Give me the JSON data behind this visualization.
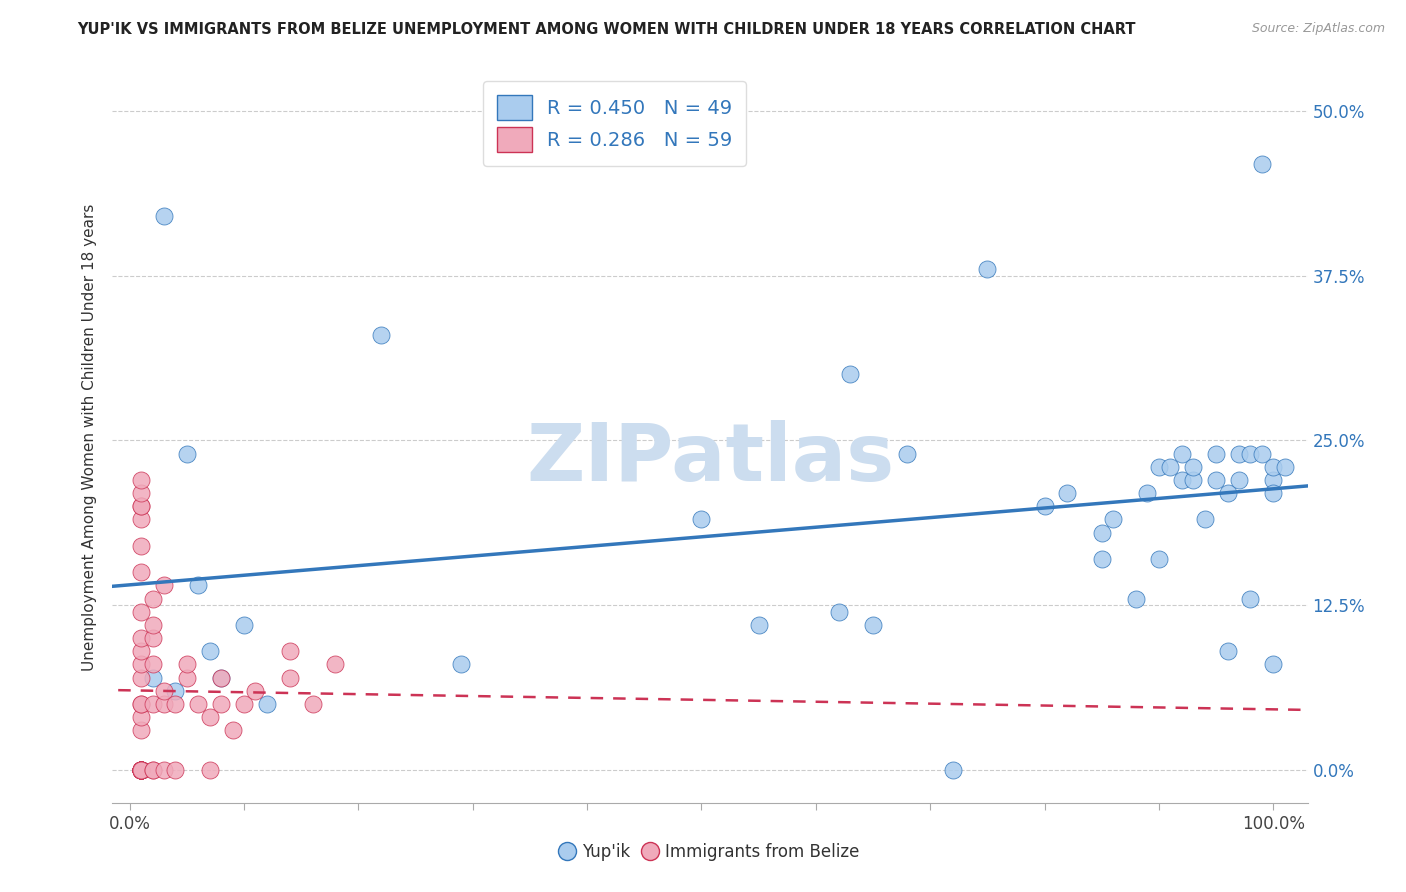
{
  "title": "YUP'IK VS IMMIGRANTS FROM BELIZE UNEMPLOYMENT AMONG WOMEN WITH CHILDREN UNDER 18 YEARS CORRELATION CHART",
  "source": "Source: ZipAtlas.com",
  "ylabel": "Unemployment Among Women with Children Under 18 years",
  "ytick_labels": [
    "0.0%",
    "12.5%",
    "25.0%",
    "37.5%",
    "50.0%"
  ],
  "ytick_values": [
    0.0,
    12.5,
    25.0,
    37.5,
    50.0
  ],
  "xtick_values": [
    0.0,
    10.0,
    20.0,
    30.0,
    40.0,
    50.0,
    60.0,
    70.0,
    80.0,
    90.0,
    100.0
  ],
  "xlim": [
    -1.5,
    103
  ],
  "ylim": [
    -2.5,
    53
  ],
  "legend_blue_R": "0.450",
  "legend_blue_N": "49",
  "legend_pink_R": "0.286",
  "legend_pink_N": "59",
  "legend_label_blue": "Yup'ik",
  "legend_label_pink": "Immigrants from Belize",
  "color_blue": "#aaccee",
  "color_pink": "#f0aabb",
  "trendline_blue": "#3377bb",
  "trendline_pink": "#cc3355",
  "watermark_color": "#ccddef",
  "watermark": "ZIPatlas",
  "blue_x": [
    3,
    5,
    22,
    29,
    50,
    55,
    62,
    63,
    65,
    68,
    72,
    75,
    80,
    82,
    85,
    85,
    86,
    88,
    89,
    90,
    90,
    91,
    92,
    92,
    93,
    93,
    94,
    95,
    95,
    96,
    96,
    97,
    97,
    98,
    98,
    99,
    99,
    100,
    100,
    100,
    100,
    101,
    2,
    4,
    6,
    7,
    8,
    10,
    12
  ],
  "blue_y": [
    42,
    24,
    33,
    8,
    19,
    11,
    12,
    30,
    11,
    24,
    0,
    38,
    20,
    21,
    18,
    16,
    19,
    13,
    21,
    23,
    16,
    23,
    24,
    22,
    22,
    23,
    19,
    22,
    24,
    21,
    9,
    24,
    22,
    13,
    24,
    46,
    24,
    22,
    23,
    21,
    8,
    23,
    7,
    6,
    14,
    9,
    7,
    11,
    5
  ],
  "pink_x": [
    1,
    1,
    1,
    1,
    1,
    1,
    1,
    1,
    1,
    1,
    1,
    1,
    1,
    1,
    1,
    1,
    1,
    1,
    1,
    1,
    1,
    1,
    1,
    1,
    1,
    1,
    1,
    1,
    1,
    1,
    1,
    1,
    2,
    2,
    2,
    2,
    2,
    2,
    2,
    3,
    3,
    3,
    3,
    4,
    4,
    5,
    5,
    6,
    7,
    7,
    8,
    8,
    9,
    10,
    11,
    14,
    14,
    16,
    18
  ],
  "pink_y": [
    0,
    0,
    0,
    0,
    0,
    0,
    0,
    0,
    0,
    0,
    0,
    0,
    0,
    0,
    0,
    0,
    3,
    4,
    5,
    5,
    7,
    8,
    9,
    10,
    12,
    15,
    17,
    19,
    20,
    20,
    21,
    22,
    0,
    0,
    5,
    8,
    10,
    11,
    13,
    0,
    5,
    6,
    14,
    0,
    5,
    7,
    8,
    5,
    0,
    4,
    5,
    7,
    3,
    5,
    6,
    7,
    9,
    5,
    8
  ]
}
